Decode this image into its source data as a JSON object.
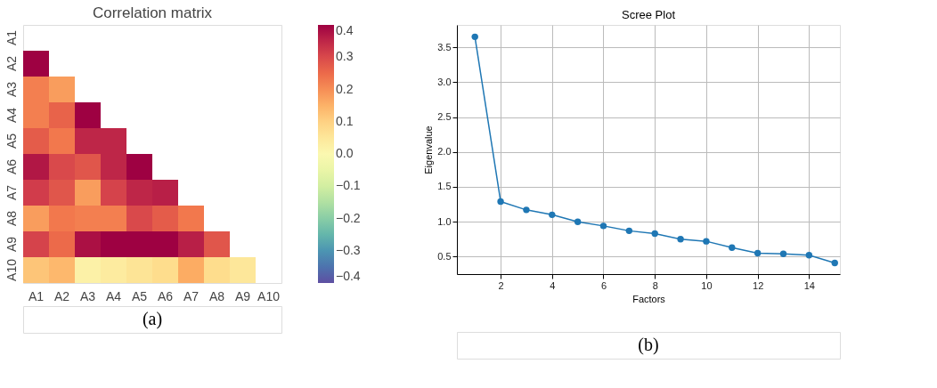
{
  "chart_data": [
    {
      "type": "heatmap",
      "title": "Correlation matrix",
      "categories": [
        "A1",
        "A2",
        "A3",
        "A4",
        "A5",
        "A6",
        "A7",
        "A8",
        "A9",
        "A10"
      ],
      "y_categories": [
        "A1",
        "A2",
        "A3",
        "A4",
        "A5",
        "A6",
        "A7",
        "A8",
        "A9",
        "A10"
      ],
      "cells": [
        [
          null,
          null,
          null,
          null,
          null,
          null,
          null,
          null,
          null,
          null
        ],
        [
          0.4,
          null,
          null,
          null,
          null,
          null,
          null,
          null,
          null,
          null
        ],
        [
          0.22,
          0.18,
          null,
          null,
          null,
          null,
          null,
          null,
          null,
          null
        ],
        [
          0.22,
          0.26,
          0.4,
          null,
          null,
          null,
          null,
          null,
          null,
          null
        ],
        [
          0.27,
          0.23,
          0.35,
          0.35,
          null,
          null,
          null,
          null,
          null,
          null
        ],
        [
          0.37,
          0.3,
          0.28,
          0.35,
          0.4,
          null,
          null,
          null,
          null,
          null
        ],
        [
          0.32,
          0.28,
          0.18,
          0.31,
          0.35,
          0.36,
          null,
          null,
          null,
          null
        ],
        [
          0.18,
          0.23,
          0.22,
          0.22,
          0.3,
          0.27,
          0.23,
          null,
          null,
          null
        ],
        [
          0.31,
          0.25,
          0.38,
          0.4,
          0.4,
          0.4,
          0.36,
          0.28,
          null,
          null
        ],
        [
          0.12,
          0.14,
          0.02,
          0.04,
          0.06,
          0.08,
          0.16,
          0.08,
          0.05,
          null
        ]
      ],
      "clim": [
        -0.4,
        0.4
      ],
      "cticks": [
        {
          "value": -0.4,
          "label": "−0.4"
        },
        {
          "value": -0.3,
          "label": "−0.3"
        },
        {
          "value": -0.2,
          "label": "−0.2"
        },
        {
          "value": -0.1,
          "label": "−0.1"
        },
        {
          "value": 0,
          "label": "0.0"
        },
        0.1,
        0.2,
        0.3,
        0.4
      ],
      "annotations": [
        "(a)"
      ]
    },
    {
      "type": "line",
      "title": "Scree Plot",
      "xlabel": "Factors",
      "ylabel": "Eigenvalue",
      "x": [
        1,
        2,
        3,
        4,
        5,
        6,
        7,
        8,
        9,
        10,
        11,
        12,
        13,
        14,
        15
      ],
      "series": [
        {
          "color": "#1f77b4",
          "values": [
            3.65,
            1.29,
            1.17,
            1.1,
            1.0,
            0.94,
            0.87,
            0.83,
            0.75,
            0.72,
            0.63,
            0.55,
            0.54,
            0.52,
            0.41
          ]
        }
      ],
      "xlim": [
        0.3,
        15.2
      ],
      "xticks": [
        2,
        4,
        6,
        8,
        10,
        12,
        14
      ],
      "ylim": [
        0.25,
        3.82
      ],
      "yticks": [
        {
          "value": 0.5,
          "label": "0.5"
        },
        {
          "value": 1,
          "label": "1.0"
        },
        {
          "value": 1.5,
          "label": "1.5"
        },
        {
          "value": 2,
          "label": "2.0"
        },
        {
          "value": 2.5,
          "label": "2.5"
        },
        {
          "value": 3,
          "label": "3.0"
        },
        {
          "value": 3.5,
          "label": "3.5"
        }
      ],
      "grid": true,
      "marker": "circle",
      "line_style": "solid",
      "annotations": [
        "(b)"
      ]
    }
  ]
}
